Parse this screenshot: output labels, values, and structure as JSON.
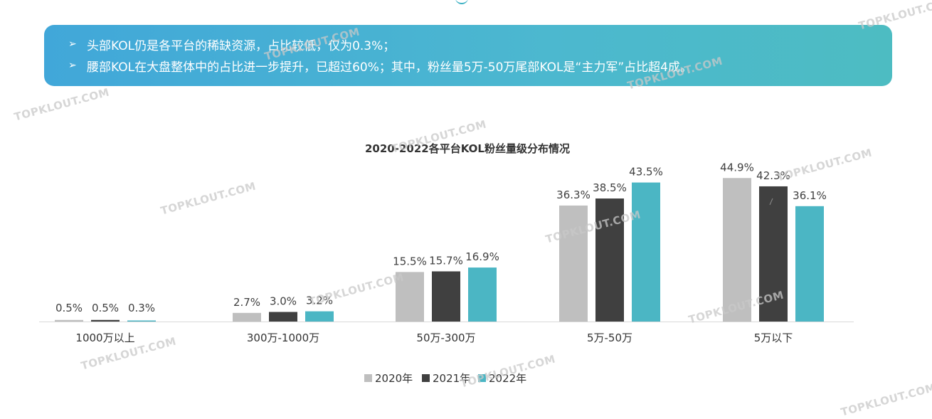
{
  "banner": {
    "bullets": [
      "头部KOL仍是各平台的稀缺资源，占比较低，仅为0.3%；",
      "腰部KOL在大盘整体中的占比进一步提升，已超过60%；其中，粉丝量5万-50万尾部KOL是“主力军”占比超4成。"
    ],
    "arrow_icon": "➢"
  },
  "watermark": {
    "text": "TOPKLOUT.COM"
  },
  "chart_data": {
    "type": "bar",
    "title": "2020-2022各平台KOL粉丝量级分布情况",
    "categories": [
      "1000万以上",
      "300万-1000万",
      "50万-300万",
      "5万-50万",
      "5万以下"
    ],
    "series": [
      {
        "name": "2020年",
        "color": "#bfbfbf",
        "values": [
          0.5,
          2.7,
          15.5,
          36.3,
          44.9
        ],
        "labels": [
          "0.5%",
          "2.7%",
          "15.5%",
          "36.3%",
          "44.9%"
        ]
      },
      {
        "name": "2021年",
        "color": "#404040",
        "values": [
          0.5,
          3.0,
          15.7,
          38.5,
          42.3
        ],
        "labels": [
          "0.5%",
          "3.0%",
          "15.7%",
          "38.5%",
          "42.3%"
        ]
      },
      {
        "name": "2022年",
        "color": "#4bb6c4",
        "values": [
          0.3,
          3.2,
          16.9,
          43.5,
          36.1
        ],
        "labels": [
          "0.3%",
          "3.2%",
          "16.9%",
          "43.5%",
          "36.1%"
        ]
      }
    ],
    "ylim": [
      0,
      50
    ],
    "legend": "bottom",
    "grid": false
  }
}
